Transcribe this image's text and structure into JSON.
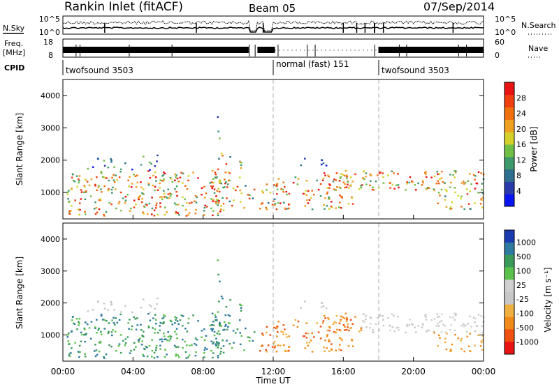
{
  "header": {
    "station": "Rankin Inlet (fitACF)",
    "beam": "Beam 05",
    "date": "07/Sep/2014"
  },
  "top_panels": {
    "nsky_label": "N.Sky",
    "nsearch_label": "N.Search",
    "nsky_ticks_left": [
      "10^5",
      "10^0"
    ],
    "nsky_ticks_right": [
      "10^5",
      "10^0"
    ],
    "freq_label_1": "Freq.",
    "freq_label_2": "[MHz]",
    "freq_ticks": [
      "18",
      "8"
    ],
    "nave_label": "Nave",
    "nave_ticks": [
      "60",
      "0"
    ],
    "cpid_label": "CPID",
    "cpid_segments": [
      {
        "name": "twofsound 3503",
        "start_hour": 0,
        "end_hour": 12
      },
      {
        "name": "normal (fast) 151",
        "start_hour": 12,
        "end_hour": 18
      },
      {
        "name": "twofsound 3503",
        "start_hour": 18,
        "end_hour": 24
      }
    ]
  },
  "colors": {
    "power_scale": [
      "#0a14f0",
      "#2a3aa8",
      "#2e6f8e",
      "#3e9a6a",
      "#6fbe45",
      "#d4d22a",
      "#f0a020",
      "#f07010",
      "#f04010",
      "#e81414"
    ],
    "velocity_scale": [
      "#e81414",
      "#f05010",
      "#f08a18",
      "#f0b040",
      "#c8c8c8",
      "#d0d0d0",
      "#5ac24a",
      "#3a9a5a",
      "#2e7aa0",
      "#1a3ab0"
    ],
    "grid_dash": "#aaaaaa"
  },
  "chart_data": [
    {
      "type": "heatmap",
      "name": "power",
      "xlabel": "",
      "ylabel": "Slant Range [km]",
      "xlim": [
        0,
        24
      ],
      "ylim": [
        180,
        4500
      ],
      "y_ticks": [
        "4000",
        "3000",
        "2000",
        "1000"
      ],
      "colorbar_label": "Power [dB]",
      "colorbar_ticks": [
        "28",
        "24",
        "20",
        "16",
        "12",
        "8",
        "4"
      ],
      "colorbar_range": [
        0,
        32
      ]
    },
    {
      "type": "heatmap",
      "name": "velocity",
      "xlabel": "Time UT",
      "ylabel": "Slant Range [km]",
      "xlim": [
        0,
        24
      ],
      "ylim": [
        180,
        4500
      ],
      "x_ticks": [
        "00:00",
        "04:00",
        "08:00",
        "12:00",
        "16:00",
        "20:00",
        "00:00"
      ],
      "y_ticks": [
        "4000",
        "3000",
        "2000",
        "1000"
      ],
      "colorbar_label": "Velocity [m s⁻¹]",
      "colorbar_ticks": [
        "1000",
        "500",
        "100",
        "25",
        "-25",
        "-100",
        "-500",
        "-1000"
      ]
    }
  ]
}
